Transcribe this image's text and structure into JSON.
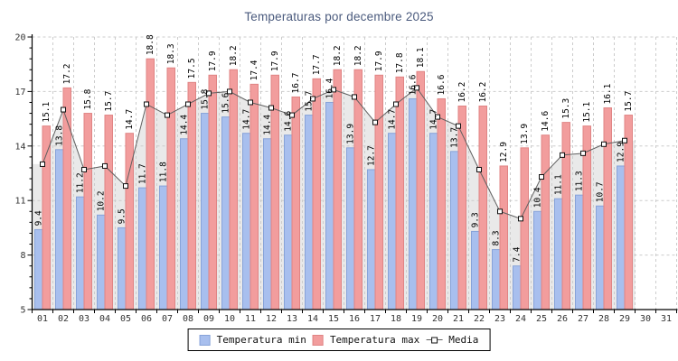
{
  "title": "Temperaturas por decembre 2025",
  "legend": {
    "min": "Temperatura min",
    "max": "Temperatura max",
    "media": "Media"
  },
  "colors": {
    "title": "#4a5a7d",
    "min_fill": "#a8bfee",
    "min_border": "#87a3d9",
    "max_fill": "#f29d9d",
    "max_border": "#e08484",
    "media_area": "#e9e9e9",
    "media_line": "#606060",
    "marker_fill": "#ffffff",
    "marker_border": "#111111",
    "grid": "#cccccc",
    "axis": "#000000"
  },
  "chart_data": {
    "type": "bar",
    "title": "Temperaturas por decembre 2025",
    "categories": [
      "01",
      "02",
      "03",
      "04",
      "05",
      "06",
      "07",
      "08",
      "09",
      "10",
      "11",
      "12",
      "13",
      "14",
      "15",
      "16",
      "17",
      "18",
      "19",
      "20",
      "21",
      "22",
      "23",
      "24",
      "25",
      "26",
      "27",
      "28",
      "29",
      "30",
      "31"
    ],
    "series": [
      {
        "name": "Temperatura min",
        "type": "bar",
        "values": [
          9.4,
          13.8,
          11.2,
          10.2,
          9.5,
          11.7,
          11.8,
          14.4,
          15.8,
          15.6,
          14.7,
          14.4,
          14.6,
          15.7,
          16.4,
          13.9,
          12.7,
          14.7,
          16.6,
          14.7,
          13.7,
          9.3,
          8.3,
          7.4,
          10.4,
          11.1,
          11.3,
          10.7,
          12.9
        ]
      },
      {
        "name": "Temperatura max",
        "type": "bar",
        "values": [
          15.1,
          17.2,
          15.8,
          15.7,
          14.7,
          18.8,
          18.3,
          17.5,
          17.9,
          18.2,
          17.4,
          17.9,
          16.7,
          17.7,
          18.2,
          18.2,
          17.9,
          17.8,
          18.1,
          16.6,
          16.2,
          16.2,
          12.9,
          13.9,
          14.6,
          15.3,
          15.1,
          16.1,
          15.7
        ]
      },
      {
        "name": "Media",
        "type": "line-area",
        "values": [
          13.0,
          16.0,
          12.7,
          12.9,
          11.8,
          16.3,
          15.7,
          16.3,
          16.9,
          17.0,
          16.4,
          16.1,
          15.7,
          16.6,
          17.1,
          16.7,
          15.3,
          16.3,
          17.2,
          15.6,
          15.1,
          12.7,
          10.4,
          10.0,
          12.3,
          13.5,
          13.6,
          14.1,
          14.3
        ]
      }
    ],
    "xlabel": "",
    "ylabel": "",
    "ylim": [
      5,
      20
    ],
    "yticks": [
      5,
      8,
      11,
      14,
      17,
      20
    ],
    "grid": true,
    "legend_position": "bottom",
    "bar_value_labels": true
  }
}
